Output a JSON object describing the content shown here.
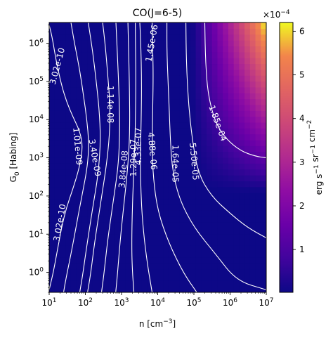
{
  "chart_data": {
    "type": "heatmap",
    "title": "CO(J=6-5)",
    "xlabel": "n [cm$^{-3}$]",
    "xlabel_display": {
      "pre": "n [cm",
      "sup": "−3",
      "post": "]"
    },
    "ylabel": "G$_0$ [Habing]",
    "ylabel_display": {
      "pre": "G",
      "sub": "0",
      "post": " [Habing]"
    },
    "x_scale": "log",
    "y_scale": "log",
    "xlim": [
      10,
      10000000
    ],
    "ylim": [
      0.3,
      3500000
    ],
    "x_ticks": [
      {
        "value": 10,
        "base": "10",
        "exp": "1"
      },
      {
        "value": 100,
        "base": "10",
        "exp": "2"
      },
      {
        "value": 1000,
        "base": "10",
        "exp": "3"
      },
      {
        "value": 10000,
        "base": "10",
        "exp": "4"
      },
      {
        "value": 100000,
        "base": "10",
        "exp": "5"
      },
      {
        "value": 1000000,
        "base": "10",
        "exp": "6"
      },
      {
        "value": 10000000,
        "base": "10",
        "exp": "7"
      }
    ],
    "y_ticks": [
      {
        "value": 1,
        "base": "10",
        "exp": "0"
      },
      {
        "value": 10,
        "base": "10",
        "exp": "1"
      },
      {
        "value": 100,
        "base": "10",
        "exp": "2"
      },
      {
        "value": 1000,
        "base": "10",
        "exp": "3"
      },
      {
        "value": 10000,
        "base": "10",
        "exp": "4"
      },
      {
        "value": 100000,
        "base": "10",
        "exp": "5"
      },
      {
        "value": 1000000,
        "base": "10",
        "exp": "6"
      }
    ],
    "colormap": "plasma",
    "colorbar": {
      "label": "erg s$^{-1}$ sr$^{-1}$ cm$^{-2}$",
      "label_display": [
        {
          "t": "erg s"
        },
        {
          "sup": "−1"
        },
        {
          "t": " sr"
        },
        {
          "sup": "−1"
        },
        {
          "t": " cm"
        },
        {
          "sup": "−2"
        }
      ],
      "multiplier": "×10$^{-4}$",
      "multiplier_display": {
        "pre": "×10",
        "sup": "−4"
      },
      "range": [
        0.02,
        6.2
      ],
      "ticks": [
        "1",
        "2",
        "3",
        "4",
        "5",
        "6"
      ]
    },
    "peak": {
      "n": 10000000,
      "G0": 3000000,
      "value": 0.00062
    },
    "contour_levels": [
      "3.02e-10",
      "1.01e-09",
      "3.40e-09",
      "1.14e-08",
      "3.84e-08",
      "1.29e-07",
      "4.33e-07",
      "1.45e-06",
      "4.88e-06",
      "1.64e-05",
      "5.50e-05",
      "1.85e-04"
    ],
    "contour_labels": [
      {
        "text": "3.02e-10",
        "n": 17,
        "G0": 250000,
        "angle": -75
      },
      {
        "text": "3.02e-10",
        "n": 20,
        "G0": 20,
        "angle": -80
      },
      {
        "text": "1.01e-09",
        "n": 60,
        "G0": 2000,
        "angle": 85
      },
      {
        "text": "3.40e-09",
        "n": 180,
        "G0": 1000,
        "angle": 80
      },
      {
        "text": "1.14e-08",
        "n": 480,
        "G0": 25000,
        "angle": 90
      },
      {
        "text": "3.84e-08",
        "n": 1150,
        "G0": 500,
        "angle": -85
      },
      {
        "text": "1.29e-07",
        "n": 2200,
        "G0": 1000,
        "angle": -90
      },
      {
        "text": "4.33e-07",
        "n": 3000,
        "G0": 2000,
        "angle": -90
      },
      {
        "text": "1.45e-06",
        "n": 7000,
        "G0": 1000000,
        "angle": -80
      },
      {
        "text": "4.88e-06",
        "n": 7000,
        "G0": 1500,
        "angle": 85
      },
      {
        "text": "1.64e-05",
        "n": 30000,
        "G0": 700,
        "angle": 90
      },
      {
        "text": "5.50e-05",
        "n": 100000,
        "G0": 800,
        "angle": 85
      },
      {
        "text": "1.85e-04",
        "n": 450000,
        "G0": 8000,
        "angle": 70
      }
    ]
  }
}
